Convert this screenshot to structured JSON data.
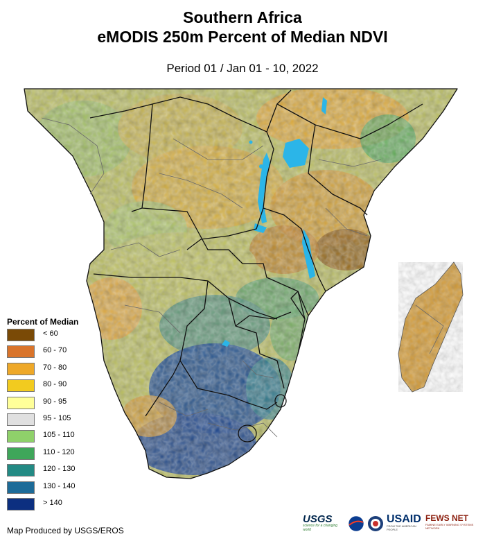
{
  "title_line1": "Southern Africa",
  "title_line2": "eMODIS 250m Percent of Median NDVI",
  "period": "Period 01 / Jan 01 - 10, 2022",
  "legend": {
    "title": "Percent of Median",
    "items": [
      {
        "label": "< 60",
        "color": "#7a4a06"
      },
      {
        "label": "60 - 70",
        "color": "#d9742b"
      },
      {
        "label": "70 - 80",
        "color": "#eea828"
      },
      {
        "label": "80 - 90",
        "color": "#f2cb1f"
      },
      {
        "label": "90 - 95",
        "color": "#ffff99"
      },
      {
        "label": "95 - 105",
        "color": "#e0e0e0"
      },
      {
        "label": "105 - 110",
        "color": "#8fd16a"
      },
      {
        "label": "110 - 120",
        "color": "#3fa65a"
      },
      {
        "label": "120 - 130",
        "color": "#238a84"
      },
      {
        "label": "130 - 140",
        "color": "#1d6b98"
      },
      {
        "label": "> 140",
        "color": "#0c2f80"
      }
    ]
  },
  "credit": "Map Produced by USGS/EROS",
  "logos": {
    "usgs": "USGS",
    "usgs_tagline": "science for a changing world",
    "usaid": "USAID",
    "usaid_tagline": "FROM THE AMERICAN PEOPLE",
    "fewsnet": "FEWS NET",
    "fewsnet_tagline": "FAMINE EARLY WARNING SYSTEMS NETWORK"
  },
  "colors": {
    "water": "#2bb5e8",
    "border": "#111111",
    "subborder": "#666666"
  }
}
